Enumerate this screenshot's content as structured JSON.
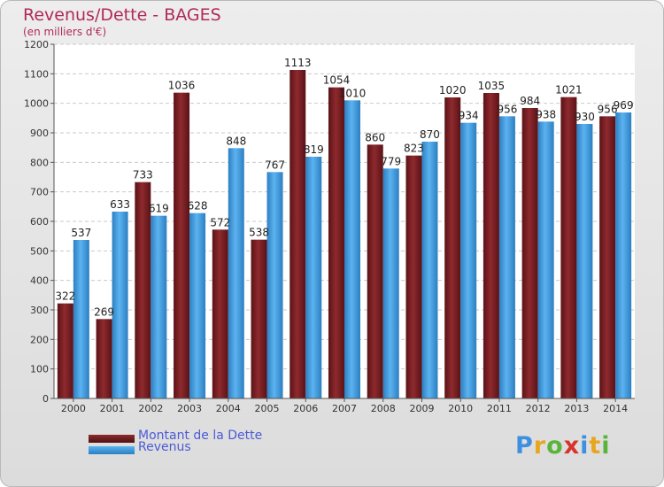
{
  "header": {
    "title": "Revenus/Dette - BAGES",
    "subtitle": "(en milliers d'€)"
  },
  "legend": [
    {
      "label": "Montant de la Dette",
      "color": "#7a1e23"
    },
    {
      "label": "Revenus",
      "color": "#3d9ee3"
    }
  ],
  "logo": {
    "text": "Proxiti"
  },
  "colors": {
    "debt": "#7a1e23",
    "revenue": "#3d9ee3",
    "title": "#b2295a",
    "legend_text": "#4b5bd6"
  },
  "chart_data": {
    "type": "bar",
    "categories": [
      "2000",
      "2001",
      "2002",
      "2003",
      "2004",
      "2005",
      "2006",
      "2007",
      "2008",
      "2009",
      "2010",
      "2011",
      "2012",
      "2013",
      "2014"
    ],
    "series": [
      {
        "name": "Montant de la Dette",
        "values": [
          322,
          269,
          733,
          1036,
          572,
          538,
          1113,
          1054,
          860,
          823,
          1020,
          1035,
          984,
          1021,
          956
        ]
      },
      {
        "name": "Revenus",
        "values": [
          537,
          633,
          619,
          628,
          848,
          767,
          819,
          1010,
          779,
          870,
          934,
          956,
          938,
          930,
          969
        ]
      }
    ],
    "ylim": [
      0,
      1200
    ],
    "yticks": [
      0,
      100,
      200,
      300,
      400,
      500,
      600,
      700,
      800,
      900,
      1000,
      1100,
      1200
    ],
    "grid": true
  }
}
